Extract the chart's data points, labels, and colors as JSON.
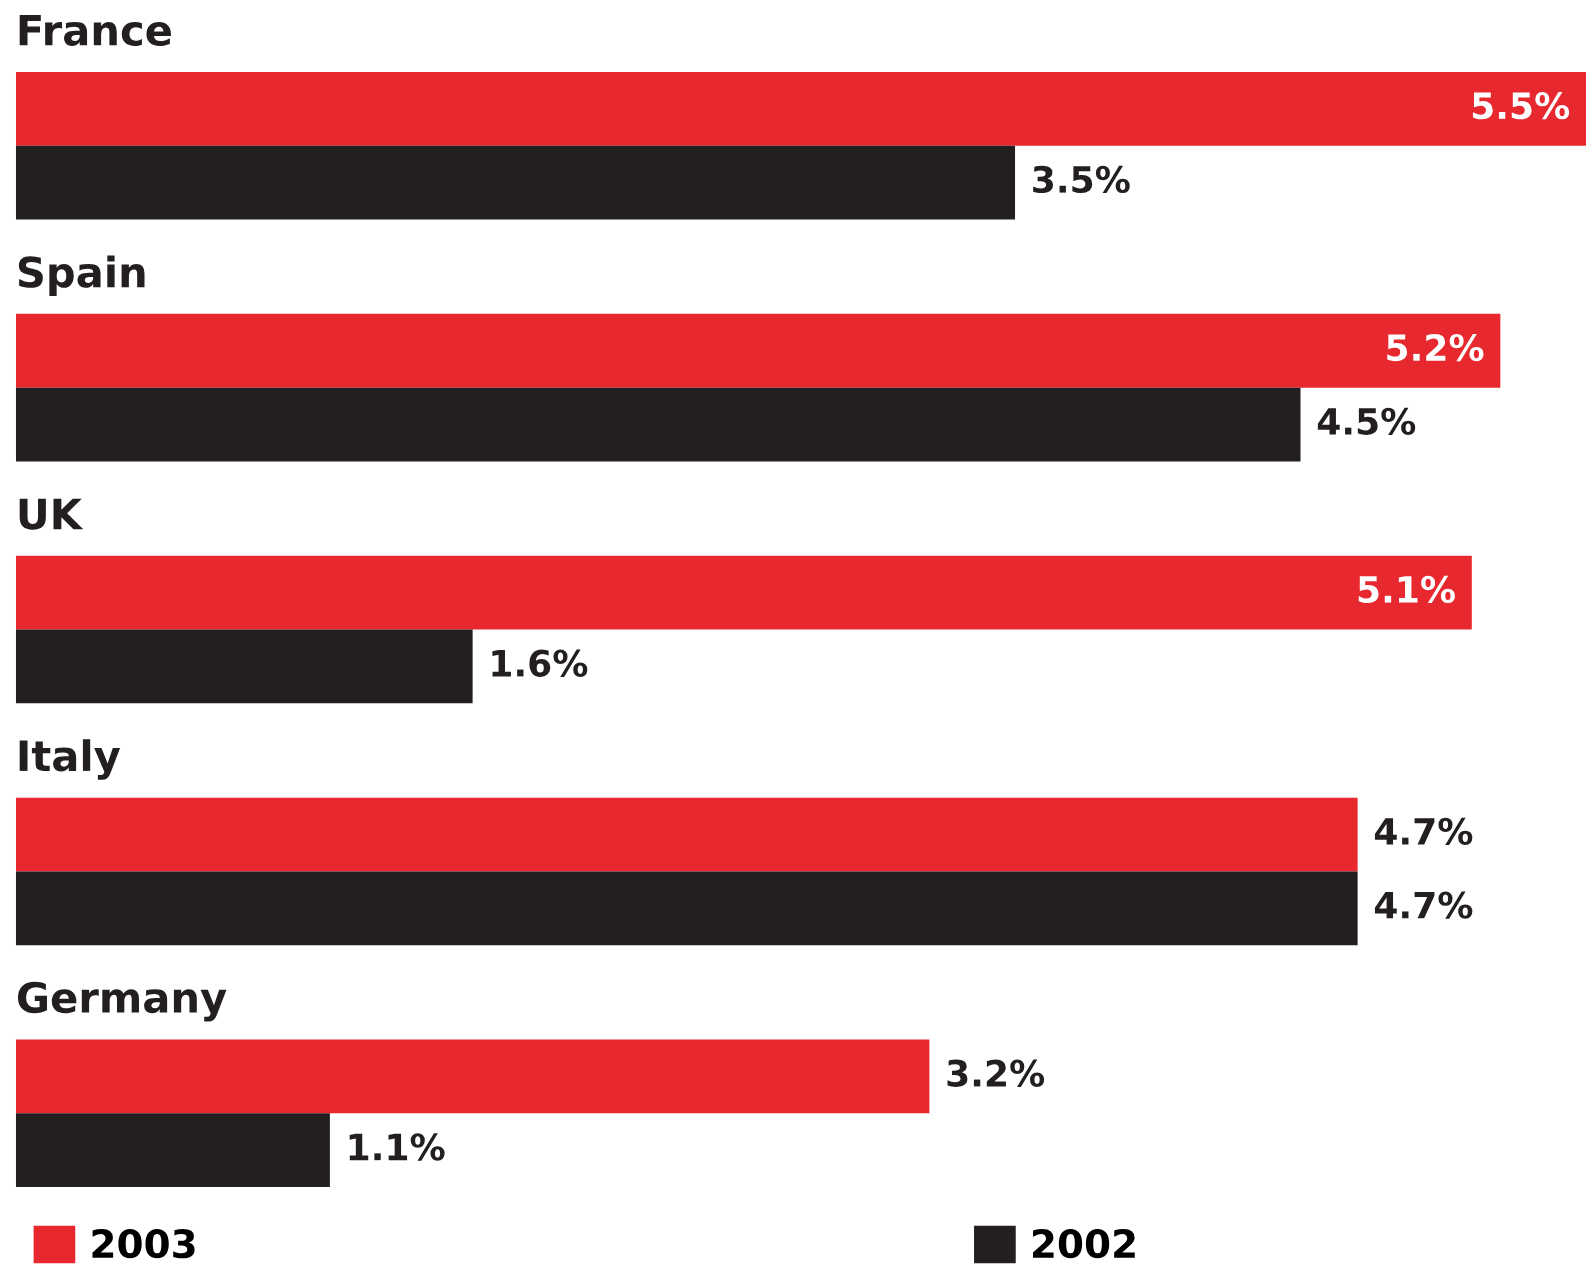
{
  "chart_data": {
    "type": "bar",
    "orientation": "horizontal",
    "categories": [
      "France",
      "Spain",
      "UK",
      "Italy",
      "Germany"
    ],
    "series": [
      {
        "name": "2003",
        "color": "#e8282f",
        "values": [
          5.5,
          5.2,
          5.1,
          4.7,
          3.2
        ],
        "value_labels": [
          "5.5%",
          "5.2%",
          "5.1%",
          "4.7%",
          "3.2%"
        ]
      },
      {
        "name": "2002",
        "color": "#231f20",
        "values": [
          3.5,
          4.5,
          1.6,
          4.7,
          1.1
        ],
        "value_labels": [
          "3.5%",
          "4.5%",
          "1.6%",
          "4.7%",
          "1.1%"
        ]
      }
    ],
    "legend": "bottom"
  }
}
